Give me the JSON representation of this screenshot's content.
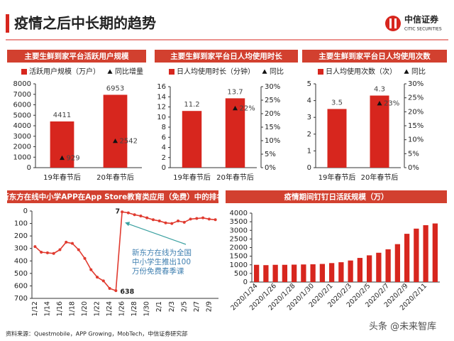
{
  "header": {
    "title": "疫情之后中长期的趋势",
    "logo_name": "中信证券",
    "logo_en": "CITIC SECURITIES"
  },
  "footer": {
    "source": "资料来源：Questmobile，APP Growing，MobTech，中信证券研究部"
  },
  "watermark": "头条 @未来智库",
  "chart_data": [
    {
      "type": "bar",
      "title": "主要生鲜到家平台活跃用户规模",
      "legend": true,
      "data_labels": true,
      "categories": [
        "19年春节后",
        "20年春节后"
      ],
      "series": [
        {
          "name": "活跃用户规模（万户）",
          "color": "#d7261e",
          "values": [
            4411,
            6953
          ]
        },
        {
          "name": "同比增量",
          "color": "#111111",
          "marker": "triangle",
          "values": [
            929,
            2542
          ]
        }
      ],
      "ylim": [
        0,
        8000
      ],
      "yticks": [
        0,
        1000,
        2000,
        3000,
        4000,
        5000,
        6000,
        7000,
        8000
      ]
    },
    {
      "type": "bar",
      "title": "主要生鲜到家平台日人均使用时长",
      "legend": true,
      "data_labels": true,
      "categories": [
        "19年春节后",
        "20年春节后"
      ],
      "series": [
        {
          "name": "日人均使用时长（分钟）",
          "color": "#d7261e",
          "values": [
            11.2,
            13.7
          ]
        },
        {
          "name": "同比",
          "color": "#111111",
          "marker": "triangle",
          "axis": "y2",
          "values": [
            null,
            22
          ],
          "value_labels": [
            null,
            "22%"
          ]
        }
      ],
      "ylim": [
        0,
        16
      ],
      "yticks": [
        0,
        2,
        4,
        6,
        8,
        10,
        12,
        14,
        16
      ],
      "y2lim": [
        0,
        30
      ],
      "y2ticks": [
        {
          "value": 0,
          "label": "0%"
        },
        {
          "value": 5,
          "label": "5%"
        },
        {
          "value": 10,
          "label": "10%"
        },
        {
          "value": 15,
          "label": "15%"
        },
        {
          "value": 20,
          "label": "20%"
        },
        {
          "value": 25,
          "label": "25%"
        },
        {
          "value": 30,
          "label": "30%"
        }
      ]
    },
    {
      "type": "bar",
      "title": "主要生鲜到家平台日人均使用次数",
      "legend": true,
      "data_labels": true,
      "categories": [
        "19年春节后",
        "20年春节后"
      ],
      "series": [
        {
          "name": "日人均使用次数（次）",
          "color": "#d7261e",
          "values": [
            3.5,
            4.3
          ]
        },
        {
          "name": "同比",
          "color": "#111111",
          "marker": "triangle",
          "axis": "y2",
          "values": [
            null,
            23
          ],
          "value_labels": [
            null,
            "23%"
          ]
        }
      ],
      "ylim": [
        0,
        5
      ],
      "yticks": [
        0,
        1,
        2,
        3,
        4,
        5
      ],
      "y2lim": [
        0,
        30
      ],
      "y2ticks": [
        {
          "value": 0,
          "label": "0%"
        },
        {
          "value": 5,
          "label": "5%"
        },
        {
          "value": 10,
          "label": "10%"
        },
        {
          "value": 15,
          "label": "15%"
        },
        {
          "value": 20,
          "label": "20%"
        },
        {
          "value": 25,
          "label": "25%"
        },
        {
          "value": 30,
          "label": "30%"
        }
      ]
    },
    {
      "type": "line",
      "title": "新东方在线中小学APP在App Store教育类应用（免费）中的排名",
      "y_inverted": true,
      "annotation": "新东方在线为全国中小学生推出100万份免费春季课",
      "categories": [
        "1/12",
        null,
        "1/14",
        null,
        "1/16",
        null,
        "1/18",
        null,
        "1/20",
        null,
        "1/22",
        null,
        "1/24",
        null,
        "1/26",
        null,
        "1/28",
        null,
        "1/30",
        null,
        "2/1",
        null,
        "2/3",
        null,
        "2/5",
        null,
        "2/7",
        null,
        "2/9",
        null
      ],
      "series": [
        {
          "name": "排名",
          "color": "#e03a2f",
          "values": [
            285,
            330,
            335,
            340,
            310,
            250,
            260,
            310,
            380,
            470,
            530,
            560,
            620,
            638,
            7,
            15,
            30,
            40,
            55,
            70,
            80,
            95,
            100,
            80,
            90,
            65,
            60,
            55,
            65,
            70
          ]
        }
      ],
      "ylim": [
        0,
        700
      ],
      "yticks": [
        0,
        100,
        200,
        300,
        400,
        500,
        600,
        700
      ]
    },
    {
      "type": "bar",
      "title": "疫情期间钉钉日活跃规模（万）",
      "data_labels": false,
      "categories": [
        "2020/1/24",
        null,
        "2020/1/26",
        null,
        "2020/1/28",
        null,
        "2020/1/30",
        null,
        "2020/2/1",
        null,
        "2020/2/3",
        null,
        "2020/2/5",
        null,
        "2020/2/7",
        null,
        "2020/2/9",
        null,
        "2020/2/11",
        null
      ],
      "series": [
        {
          "name": "日活跃规模",
          "color": "#d7261e",
          "values": [
            1000,
            980,
            1000,
            1000,
            1010,
            1020,
            1030,
            1050,
            1100,
            1150,
            1250,
            1400,
            1550,
            1700,
            1900,
            2200,
            2800,
            3100,
            3300,
            3400
          ]
        }
      ],
      "ylim": [
        0,
        4000
      ],
      "yticks": [
        0,
        500,
        1000,
        1500,
        2000,
        2500,
        3000,
        3500,
        4000
      ]
    }
  ]
}
